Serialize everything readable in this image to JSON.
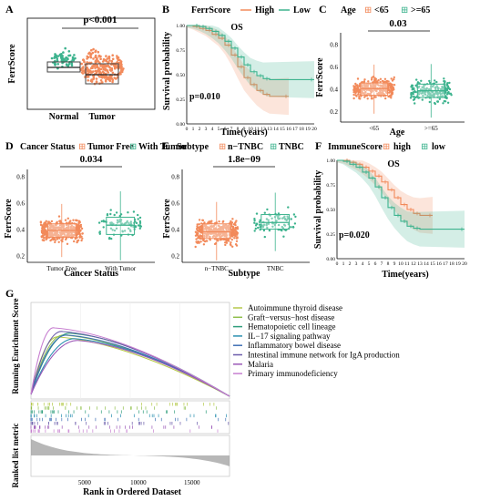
{
  "colors": {
    "orange": "#F28A5B",
    "green": "#3DB38E",
    "purple": "#9467BD",
    "gray": "#888888"
  },
  "panels": {
    "A": {
      "letter": "A",
      "ylabel": "FerrScore",
      "pval": "p<0.001",
      "groups": [
        "Normal",
        "Tumor"
      ]
    },
    "B": {
      "letter": "B",
      "legend_title": "FerrScore",
      "legend_items": [
        "High",
        "Low"
      ],
      "subtitle": "OS",
      "ylabel": "Survival probability",
      "xlabel": "Time(years)",
      "pval": "p=0.010",
      "yticks": [
        "0.00",
        "0.25",
        "0.50",
        "0.75",
        "1.00"
      ],
      "xticks": [
        "0",
        "1",
        "2",
        "3",
        "4",
        "5",
        "6",
        "7",
        "8",
        "9",
        "10",
        "11",
        "12",
        "13",
        "14",
        "15",
        "16",
        "17",
        "18",
        "19",
        "20"
      ]
    },
    "C": {
      "letter": "C",
      "legend_title": "Age",
      "legend_items": [
        "<65",
        ">=65"
      ],
      "pval": "0.03",
      "ylabel": "FerrScore",
      "xlabel": "Age",
      "yticks": [
        "0.2",
        "0.4",
        "0.6",
        "0.8"
      ],
      "groups": [
        "<65",
        ">=65"
      ]
    },
    "D": {
      "letter": "D",
      "legend_title": "Cancer Status",
      "legend_items": [
        "Tumor Free",
        "With Tumor"
      ],
      "pval": "0.034",
      "ylabel": "FerrScore",
      "xlabel": "Cancer Status",
      "yticks": [
        "0.2",
        "0.4",
        "0.6",
        "0.8"
      ],
      "groups": [
        "Tumor Free",
        "With Tumor"
      ]
    },
    "E": {
      "letter": "E",
      "legend_title": "Subtype",
      "legend_items": [
        "n−TNBC",
        "TNBC"
      ],
      "pval": "1.8e−09",
      "ylabel": "FerrScore",
      "xlabel": "Subtype",
      "yticks": [
        "0.2",
        "0.4",
        "0.6",
        "0.8"
      ],
      "groups": [
        "n−TNBC",
        "TNBC"
      ]
    },
    "F": {
      "letter": "F",
      "legend_title": "ImmuneScore",
      "legend_items": [
        "high",
        "low"
      ],
      "subtitle": "OS",
      "ylabel": "Survival probability",
      "xlabel": "Time(years)",
      "pval": "p=0.020",
      "yticks": [
        "0.00",
        "0.25",
        "0.50",
        "0.75",
        "1.00"
      ],
      "xticks": [
        "0",
        "1",
        "2",
        "3",
        "4",
        "5",
        "6",
        "7",
        "8",
        "9",
        "10",
        "11",
        "12",
        "13",
        "14",
        "15",
        "16",
        "17",
        "18",
        "19",
        "20"
      ]
    },
    "G": {
      "letter": "G",
      "ylabel_top": "Running Enrichment Score",
      "ylabel_bottom": "Ranked list metric",
      "xlabel": "Rank in Ordered Dataset",
      "xticks": [
        "5000",
        "10000",
        "15000"
      ]
    }
  },
  "chart_data": [
    {
      "panel": "A",
      "type": "scatter",
      "categories": [
        "Normal",
        "Tumor"
      ],
      "medians": [
        0.46,
        0.4
      ],
      "q1": [
        0.42,
        0.33
      ],
      "q3": [
        0.5,
        0.47
      ]
    },
    {
      "panel": "B",
      "type": "line",
      "series": [
        {
          "name": "High",
          "x": [
            0,
            1,
            2,
            3,
            4,
            5,
            6,
            7,
            8,
            9,
            10,
            11,
            12,
            13,
            16
          ],
          "y": [
            1.0,
            0.99,
            0.97,
            0.95,
            0.91,
            0.87,
            0.8,
            0.7,
            0.58,
            0.47,
            0.4,
            0.34,
            0.3,
            0.28,
            0.28
          ]
        },
        {
          "name": "Low",
          "x": [
            0,
            1,
            2,
            3,
            4,
            5,
            6,
            7,
            8,
            9,
            10,
            11,
            12,
            13,
            20
          ],
          "y": [
            1.0,
            1.0,
            0.99,
            0.97,
            0.94,
            0.9,
            0.84,
            0.77,
            0.68,
            0.6,
            0.53,
            0.49,
            0.46,
            0.45,
            0.45
          ]
        }
      ],
      "ylim": [
        0,
        1
      ],
      "xlim": [
        0,
        20
      ]
    },
    {
      "panel": "C",
      "type": "scatter",
      "categories": [
        "<65",
        ">=65"
      ],
      "medians": [
        0.4,
        0.38
      ],
      "q1": [
        0.34,
        0.32
      ],
      "q3": [
        0.45,
        0.44
      ],
      "ylim": [
        0.1,
        0.9
      ]
    },
    {
      "panel": "D",
      "type": "scatter",
      "categories": [
        "Tumor Free",
        "With Tumor"
      ],
      "medians": [
        0.39,
        0.43
      ],
      "q1": [
        0.34,
        0.36
      ],
      "q3": [
        0.44,
        0.49
      ],
      "ylim": [
        0.15,
        0.85
      ]
    },
    {
      "panel": "E",
      "type": "scatter",
      "categories": [
        "n−TNBC",
        "TNBC"
      ],
      "medians": [
        0.38,
        0.45
      ],
      "q1": [
        0.33,
        0.4
      ],
      "q3": [
        0.44,
        0.51
      ],
      "ylim": [
        0.15,
        0.85
      ]
    },
    {
      "panel": "F",
      "type": "line",
      "series": [
        {
          "name": "high",
          "x": [
            0,
            1,
            2,
            3,
            4,
            5,
            6,
            7,
            8,
            9,
            10,
            11,
            12,
            13,
            15
          ],
          "y": [
            1.0,
            1.0,
            0.98,
            0.96,
            0.93,
            0.89,
            0.84,
            0.78,
            0.7,
            0.62,
            0.55,
            0.5,
            0.46,
            0.44,
            0.44
          ]
        },
        {
          "name": "low",
          "x": [
            0,
            1,
            2,
            3,
            4,
            5,
            6,
            7,
            8,
            9,
            10,
            11,
            12,
            13,
            20
          ],
          "y": [
            1.0,
            0.99,
            0.96,
            0.93,
            0.88,
            0.82,
            0.73,
            0.62,
            0.52,
            0.44,
            0.38,
            0.33,
            0.31,
            0.3,
            0.3
          ]
        }
      ],
      "ylim": [
        0,
        1
      ],
      "xlim": [
        0,
        20
      ]
    },
    {
      "panel": "G",
      "type": "line",
      "xlim": [
        0,
        18500
      ],
      "series": [
        {
          "name": "Autoimmune thyroid disease",
          "color": "#B5C94A",
          "peak_x": 2600,
          "peak_y": 0.68
        },
        {
          "name": "Graft−versus−host disease",
          "color": "#8FBF4A",
          "peak_x": 3200,
          "peak_y": 0.7
        },
        {
          "name": "Hematopoietic cell lineage",
          "color": "#2F9E7B",
          "peak_x": 3800,
          "peak_y": 0.72
        },
        {
          "name": "IL−17 signaling pathway",
          "color": "#2A8FB0",
          "peak_x": 4300,
          "peak_y": 0.66
        },
        {
          "name": "Inflammatory bowel disease",
          "color": "#3E6FB5",
          "peak_x": 3500,
          "peak_y": 0.7
        },
        {
          "name": "Intestinal immune network for IgA production",
          "color": "#6A5BAA",
          "peak_x": 3000,
          "peak_y": 0.74
        },
        {
          "name": "Malaria",
          "color": "#9A58B7",
          "peak_x": 4600,
          "peak_y": 0.64
        },
        {
          "name": "Primary immunodeficiency",
          "color": "#C77FD0",
          "peak_x": 2200,
          "peak_y": 0.78
        }
      ]
    }
  ]
}
